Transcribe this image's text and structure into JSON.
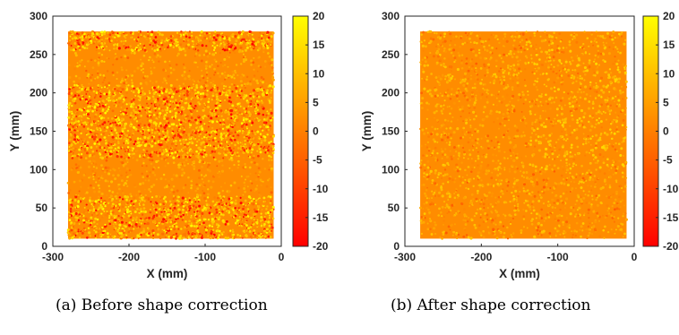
{
  "captions": {
    "a": "(a)  Before shape correction",
    "b": "(b)  After shape correction"
  },
  "colors": {
    "base_orange": "#FF8C00",
    "colormap_low": "#FF0000",
    "colormap_high": "#FFFF00",
    "frame": "#262626"
  },
  "chart_data": [
    {
      "type": "scatter",
      "id": "a",
      "title": "",
      "xlabel": "X (mm)",
      "ylabel": "Y (mm)",
      "xlim": [
        -300,
        0
      ],
      "ylim": [
        0,
        300
      ],
      "xticks": [
        -300,
        -200,
        -100,
        0
      ],
      "yticks": [
        0,
        50,
        100,
        150,
        200,
        250,
        300
      ],
      "data_extent": {
        "x": [
          -280,
          -10
        ],
        "y": [
          10,
          280
        ]
      },
      "colorbar": {
        "clim": [
          -20,
          20
        ],
        "ticks": [
          20,
          15,
          10,
          5,
          0,
          -5,
          -10,
          -15,
          -20
        ],
        "colormap": "autumn"
      },
      "value_bands": [
        {
          "y": [
            10,
            65
          ],
          "spread": "high"
        },
        {
          "y": [
            65,
            115
          ],
          "spread": "low"
        },
        {
          "y": [
            115,
            210
          ],
          "spread": "high"
        },
        {
          "y": [
            210,
            255
          ],
          "spread": "low"
        },
        {
          "y": [
            255,
            280
          ],
          "spread": "high"
        }
      ]
    },
    {
      "type": "scatter",
      "id": "b",
      "title": "",
      "xlabel": "X (mm)",
      "ylabel": "Y (mm)",
      "xlim": [
        -300,
        0
      ],
      "ylim": [
        0,
        300
      ],
      "xticks": [
        -300,
        -200,
        -100,
        0
      ],
      "yticks": [
        0,
        50,
        100,
        150,
        200,
        250,
        300
      ],
      "data_extent": {
        "x": [
          -280,
          -10
        ],
        "y": [
          10,
          280
        ]
      },
      "colorbar": {
        "clim": [
          -20,
          20
        ],
        "ticks": [
          20,
          15,
          10,
          5,
          0,
          -5,
          -10,
          -15,
          -20
        ],
        "colormap": "autumn"
      },
      "value_bands": [
        {
          "y": [
            10,
            280
          ],
          "spread": "low"
        }
      ]
    }
  ]
}
